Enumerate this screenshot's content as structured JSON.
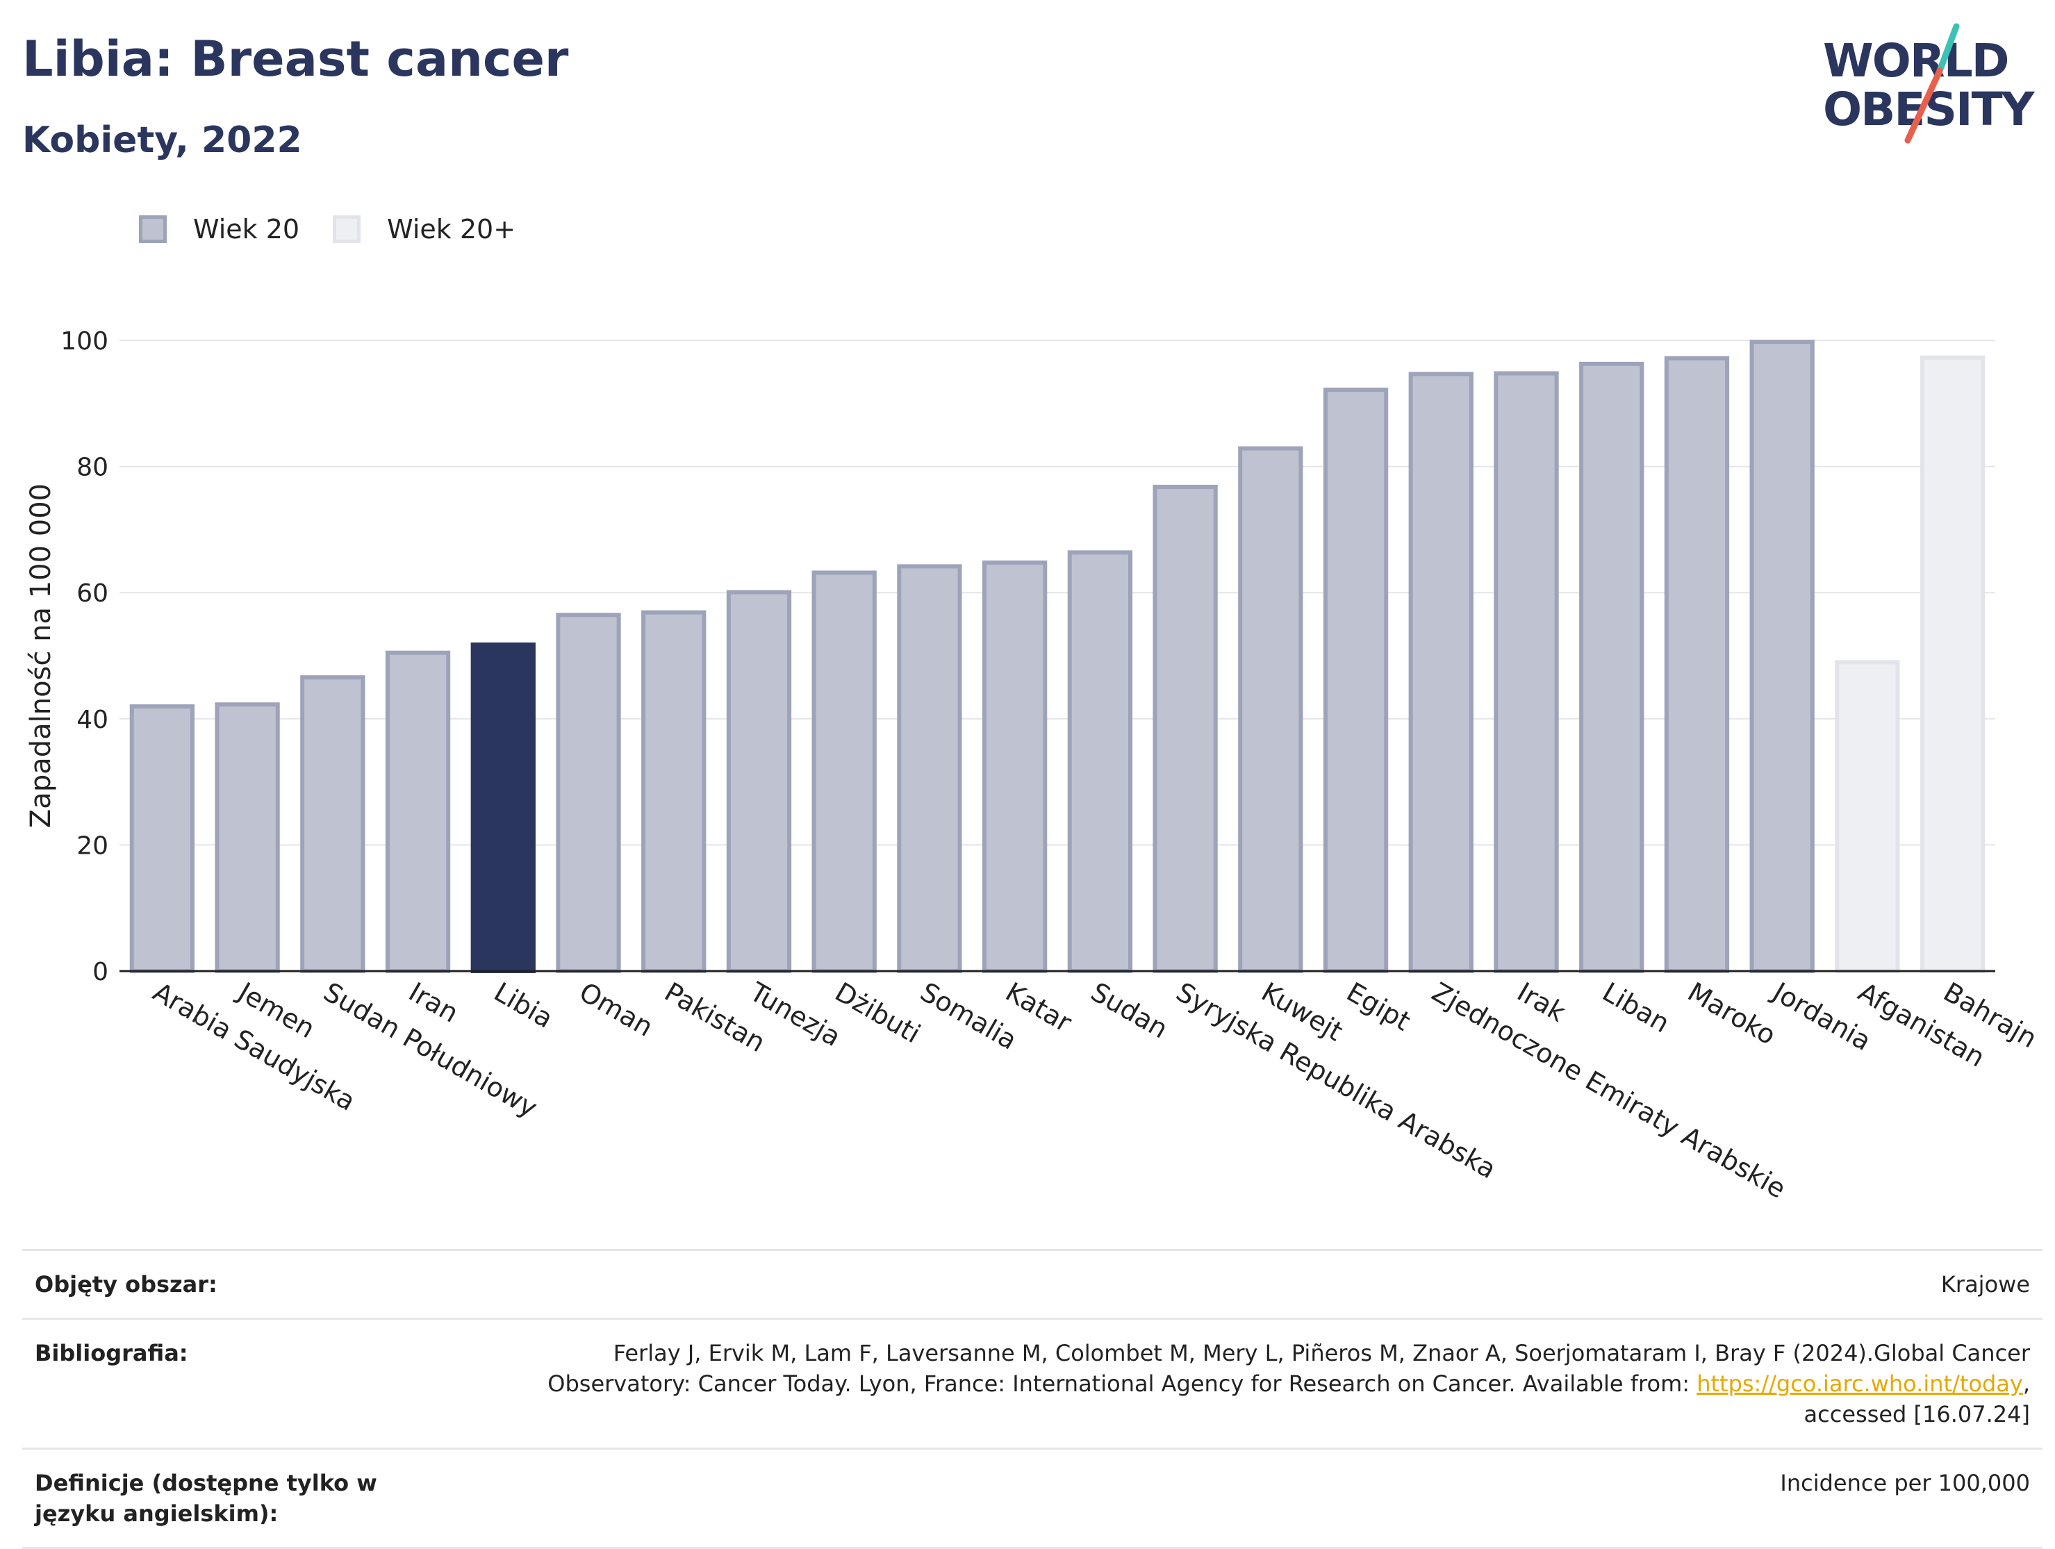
{
  "header": {
    "title": "Libia: Breast cancer",
    "subtitle": "Kobiety, 2022"
  },
  "logo": {
    "line1": "WORLD",
    "line2": "OBESITY",
    "colors": {
      "text": "#2b365f",
      "slash_red": "#e8604c",
      "slash_teal": "#3cc1b7"
    }
  },
  "legend": [
    {
      "label": "Wiek 20",
      "fill": "#bfc2d0",
      "stroke": "#9da3b9"
    },
    {
      "label": "Wiek 20+",
      "fill": "#eeeff3",
      "stroke": "#e2e4ea"
    }
  ],
  "chart_data": {
    "type": "bar",
    "ylabel": "Zapadalność na 100 000",
    "ylim": [
      0,
      100
    ],
    "yticks": [
      0,
      20,
      40,
      60,
      80,
      100
    ],
    "grid": true,
    "legend_position": "top-left",
    "highlight_color": "#2b365f",
    "categories": [
      "Arabia Saudyjska",
      "Jemen",
      "Sudan Południowy",
      "Iran",
      "Libia",
      "Oman",
      "Pakistan",
      "Tunezja",
      "Dżibuti",
      "Somalia",
      "Katar",
      "Sudan",
      "Syryjska Republika Arabska",
      "Kuwejt",
      "Egipt",
      "Zjednoczone Emiraty Arabskie",
      "Irak",
      "Liban",
      "Maroko",
      "Jordania",
      "Afganistan",
      "Bahrajn"
    ],
    "values": [
      42.3,
      42.6,
      46.9,
      50.8,
      52.1,
      56.8,
      57.2,
      60.4,
      63.5,
      64.5,
      65.1,
      66.7,
      77.1,
      83.2,
      92.5,
      95.0,
      95.1,
      96.6,
      97.5,
      100.1,
      49.3,
      97.6
    ],
    "series_of": [
      "Wiek 20",
      "Wiek 20",
      "Wiek 20",
      "Wiek 20",
      "Wiek 20",
      "Wiek 20",
      "Wiek 20",
      "Wiek 20",
      "Wiek 20",
      "Wiek 20",
      "Wiek 20",
      "Wiek 20",
      "Wiek 20",
      "Wiek 20",
      "Wiek 20",
      "Wiek 20",
      "Wiek 20",
      "Wiek 20",
      "Wiek 20",
      "Wiek 20",
      "Wiek 20+",
      "Wiek 20+"
    ],
    "highlight": "Libia"
  },
  "meta": {
    "area_label": "Objęty obszar:",
    "area_value": "Krajowe",
    "bib_label": "Bibliografia:",
    "bib_text_1": "Ferlay J, Ervik M, Lam F, Laversanne M, Colombet M, Mery L, Piñeros M, Znaor A, Soerjomataram I, Bray F (2024).Global Cancer",
    "bib_text_2": "Observatory: Cancer Today. Lyon, France: International Agency for Research on Cancer. Available from: ",
    "bib_link": "https://gco.iarc.who.int/today",
    "bib_text_3": ",",
    "bib_text_4": "accessed [16.07.24]",
    "def_label": "Definicje (dostępne tylko w języku angielskim):",
    "def_value": "Incidence per 100,000"
  }
}
